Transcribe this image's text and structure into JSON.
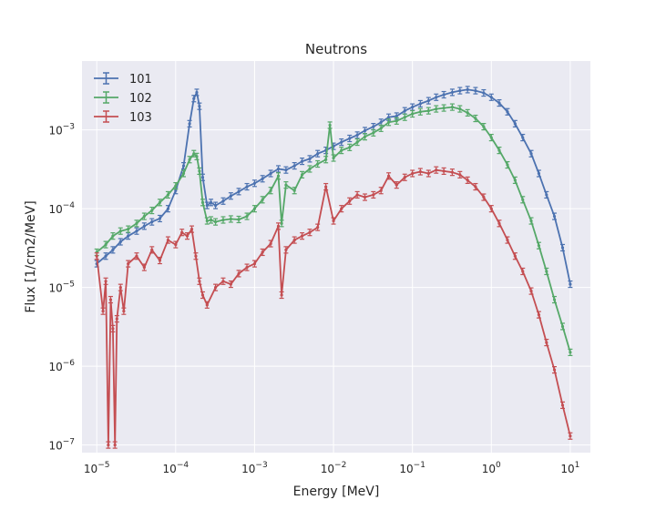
{
  "chart_data": {
    "type": "line",
    "title": "Neutrons",
    "xlabel": "Energy [MeV]",
    "ylabel": "Flux [1/cm2/MeV]",
    "xscale": "log",
    "yscale": "log",
    "xlim": [
      6.5e-06,
      18
    ],
    "ylim": [
      8e-08,
      0.0075
    ],
    "grid": true,
    "legend_position": "top-left",
    "x_ticks": [
      {
        "value": 1e-05,
        "base": "10",
        "exp": "−5"
      },
      {
        "value": 0.0001,
        "base": "10",
        "exp": "−4"
      },
      {
        "value": 0.001,
        "base": "10",
        "exp": "−3"
      },
      {
        "value": 0.01,
        "base": "10",
        "exp": "−2"
      },
      {
        "value": 0.1,
        "base": "10",
        "exp": "−1"
      },
      {
        "value": 1,
        "base": "10",
        "exp": "0"
      },
      {
        "value": 10,
        "base": "10",
        "exp": "1"
      }
    ],
    "y_ticks": [
      {
        "value": 1e-07,
        "base": "10",
        "exp": "−7"
      },
      {
        "value": 1e-06,
        "base": "10",
        "exp": "−6"
      },
      {
        "value": 1e-05,
        "base": "10",
        "exp": "−5"
      },
      {
        "value": 0.0001,
        "base": "10",
        "exp": "−4"
      },
      {
        "value": 0.001,
        "base": "10",
        "exp": "−3"
      }
    ],
    "series": [
      {
        "name": "101",
        "color": "#4c72b0",
        "points": [
          [
            1e-05,
            2e-05
          ],
          [
            1.3e-05,
            2.5e-05
          ],
          [
            1.6e-05,
            3e-05
          ],
          [
            2e-05,
            3.8e-05
          ],
          [
            2.5e-05,
            4.5e-05
          ],
          [
            3.2e-05,
            5.2e-05
          ],
          [
            4e-05,
            6e-05
          ],
          [
            5e-05,
            6.8e-05
          ],
          [
            6.3e-05,
            7.5e-05
          ],
          [
            8e-05,
            0.0001
          ],
          [
            0.0001,
            0.00017
          ],
          [
            0.000126,
            0.00035
          ],
          [
            0.00015,
            0.0012
          ],
          [
            0.00017,
            0.0025
          ],
          [
            0.000185,
            0.003
          ],
          [
            0.0002,
            0.002
          ],
          [
            0.00022,
            0.00025
          ],
          [
            0.00025,
            0.00011
          ],
          [
            0.00028,
            0.00012
          ],
          [
            0.00032,
            0.00011
          ],
          [
            0.0004,
            0.000125
          ],
          [
            0.0005,
            0.000145
          ],
          [
            0.00063,
            0.000165
          ],
          [
            0.0008,
            0.00019
          ],
          [
            0.001,
            0.00021
          ],
          [
            0.00126,
            0.00024
          ],
          [
            0.0016,
            0.00028
          ],
          [
            0.002,
            0.00032
          ],
          [
            0.0025,
            0.00031
          ],
          [
            0.0032,
            0.00035
          ],
          [
            0.004,
            0.0004
          ],
          [
            0.005,
            0.00043
          ],
          [
            0.0063,
            0.0005
          ],
          [
            0.008,
            0.00055
          ],
          [
            0.01,
            0.00062
          ],
          [
            0.0126,
            0.0007
          ],
          [
            0.016,
            0.00078
          ],
          [
            0.02,
            0.00086
          ],
          [
            0.025,
            0.00098
          ],
          [
            0.032,
            0.0011
          ],
          [
            0.04,
            0.00125
          ],
          [
            0.05,
            0.00145
          ],
          [
            0.063,
            0.0015
          ],
          [
            0.08,
            0.00175
          ],
          [
            0.1,
            0.00195
          ],
          [
            0.126,
            0.00215
          ],
          [
            0.16,
            0.00235
          ],
          [
            0.2,
            0.0026
          ],
          [
            0.25,
            0.0028
          ],
          [
            0.32,
            0.003
          ],
          [
            0.4,
            0.00315
          ],
          [
            0.5,
            0.00325
          ],
          [
            0.63,
            0.00315
          ],
          [
            0.8,
            0.00295
          ],
          [
            1,
            0.0026
          ],
          [
            1.26,
            0.0022
          ],
          [
            1.6,
            0.0017
          ],
          [
            2,
            0.0012
          ],
          [
            2.5,
            0.0008
          ],
          [
            3.2,
            0.0005
          ],
          [
            4,
            0.00028
          ],
          [
            5,
            0.00015
          ],
          [
            6.3,
            8e-05
          ],
          [
            8,
            3.2e-05
          ],
          [
            10,
            1.1e-05
          ]
        ]
      },
      {
        "name": "102",
        "color": "#55a868",
        "points": [
          [
            1e-05,
            2.8e-05
          ],
          [
            1.3e-05,
            3.5e-05
          ],
          [
            1.6e-05,
            4.5e-05
          ],
          [
            2e-05,
            5.2e-05
          ],
          [
            2.5e-05,
            5.5e-05
          ],
          [
            3.2e-05,
            6.5e-05
          ],
          [
            4e-05,
            8e-05
          ],
          [
            5e-05,
            9.5e-05
          ],
          [
            6.3e-05,
            0.00012
          ],
          [
            8e-05,
            0.00015
          ],
          [
            0.0001,
            0.000195
          ],
          [
            0.000126,
            0.00028
          ],
          [
            0.00015,
            0.00042
          ],
          [
            0.00017,
            0.0005
          ],
          [
            0.000185,
            0.00046
          ],
          [
            0.0002,
            0.0003
          ],
          [
            0.00022,
            0.00012
          ],
          [
            0.00025,
            7e-05
          ],
          [
            0.00028,
            7.2e-05
          ],
          [
            0.00032,
            6.8e-05
          ],
          [
            0.0004,
            7.2e-05
          ],
          [
            0.0005,
            7.4e-05
          ],
          [
            0.00063,
            7.3e-05
          ],
          [
            0.0008,
            8e-05
          ],
          [
            0.001,
            0.0001
          ],
          [
            0.00126,
            0.00013
          ],
          [
            0.0016,
            0.00017
          ],
          [
            0.002,
            0.00026
          ],
          [
            0.0022,
            6.5e-05
          ],
          [
            0.0025,
            0.0002
          ],
          [
            0.0032,
            0.00017
          ],
          [
            0.004,
            0.00027
          ],
          [
            0.005,
            0.00032
          ],
          [
            0.0063,
            0.00037
          ],
          [
            0.008,
            0.00042
          ],
          [
            0.009,
            0.00115
          ],
          [
            0.01,
            0.00044
          ],
          [
            0.0126,
            0.00055
          ],
          [
            0.016,
            0.0006
          ],
          [
            0.02,
            0.0007
          ],
          [
            0.025,
            0.00082
          ],
          [
            0.032,
            0.00092
          ],
          [
            0.04,
            0.00105
          ],
          [
            0.05,
            0.00125
          ],
          [
            0.063,
            0.0013
          ],
          [
            0.08,
            0.00145
          ],
          [
            0.1,
            0.0016
          ],
          [
            0.126,
            0.0017
          ],
          [
            0.16,
            0.00175
          ],
          [
            0.2,
            0.00185
          ],
          [
            0.25,
            0.0019
          ],
          [
            0.32,
            0.00195
          ],
          [
            0.4,
            0.00185
          ],
          [
            0.5,
            0.00165
          ],
          [
            0.63,
            0.0014
          ],
          [
            0.8,
            0.0011
          ],
          [
            1,
            0.0008
          ],
          [
            1.26,
            0.00055
          ],
          [
            1.6,
            0.00036
          ],
          [
            2,
            0.00023
          ],
          [
            2.5,
            0.00013
          ],
          [
            3.2,
            7e-05
          ],
          [
            4,
            3.4e-05
          ],
          [
            5,
            1.6e-05
          ],
          [
            6.3,
            7e-06
          ],
          [
            8,
            3.2e-06
          ],
          [
            10,
            1.5e-06
          ]
        ]
      },
      {
        "name": "103",
        "color": "#c44e52",
        "points": [
          [
            1e-05,
            2.5e-05
          ],
          [
            1.2e-05,
            5e-06
          ],
          [
            1.3e-05,
            1.2e-05
          ],
          [
            1.4e-05,
            1e-07
          ],
          [
            1.5e-05,
            7e-06
          ],
          [
            1.6e-05,
            3e-06
          ],
          [
            1.7e-05,
            1e-07
          ],
          [
            1.8e-05,
            4e-06
          ],
          [
            2e-05,
            1e-05
          ],
          [
            2.2e-05,
            5e-06
          ],
          [
            2.5e-05,
            2e-05
          ],
          [
            3.2e-05,
            2.5e-05
          ],
          [
            4e-05,
            1.8e-05
          ],
          [
            5e-05,
            3e-05
          ],
          [
            6.3e-05,
            2.2e-05
          ],
          [
            8e-05,
            4e-05
          ],
          [
            0.0001,
            3.5e-05
          ],
          [
            0.00012,
            5e-05
          ],
          [
            0.00014,
            4.5e-05
          ],
          [
            0.00016,
            5.5e-05
          ],
          [
            0.00018,
            2.5e-05
          ],
          [
            0.0002,
            1.2e-05
          ],
          [
            0.00022,
            8e-06
          ],
          [
            0.00025,
            6e-06
          ],
          [
            0.00032,
            1e-05
          ],
          [
            0.0004,
            1.2e-05
          ],
          [
            0.0005,
            1.1e-05
          ],
          [
            0.00063,
            1.5e-05
          ],
          [
            0.0008,
            1.8e-05
          ],
          [
            0.001,
            2e-05
          ],
          [
            0.00126,
            2.8e-05
          ],
          [
            0.0016,
            3.6e-05
          ],
          [
            0.002,
            6e-05
          ],
          [
            0.0022,
            8e-06
          ],
          [
            0.0025,
            3e-05
          ],
          [
            0.0032,
            4e-05
          ],
          [
            0.004,
            4.5e-05
          ],
          [
            0.005,
            5e-05
          ],
          [
            0.0063,
            5.8e-05
          ],
          [
            0.008,
            0.00019
          ],
          [
            0.01,
            7e-05
          ],
          [
            0.0126,
            0.0001
          ],
          [
            0.016,
            0.000125
          ],
          [
            0.02,
            0.00015
          ],
          [
            0.025,
            0.00014
          ],
          [
            0.032,
            0.00015
          ],
          [
            0.04,
            0.00017
          ],
          [
            0.05,
            0.00026
          ],
          [
            0.063,
            0.0002
          ],
          [
            0.08,
            0.00025
          ],
          [
            0.1,
            0.00028
          ],
          [
            0.126,
            0.000295
          ],
          [
            0.16,
            0.00028
          ],
          [
            0.2,
            0.00031
          ],
          [
            0.25,
            0.0003
          ],
          [
            0.32,
            0.00029
          ],
          [
            0.4,
            0.00027
          ],
          [
            0.5,
            0.00023
          ],
          [
            0.63,
            0.00019
          ],
          [
            0.8,
            0.00014
          ],
          [
            1,
            0.0001
          ],
          [
            1.26,
            6.5e-05
          ],
          [
            1.6,
            4e-05
          ],
          [
            2,
            2.5e-05
          ],
          [
            2.5,
            1.6e-05
          ],
          [
            3.2,
            9e-06
          ],
          [
            4,
            4.5e-06
          ],
          [
            5,
            2e-06
          ],
          [
            6.3,
            9e-07
          ],
          [
            8,
            3.2e-07
          ],
          [
            10,
            1.3e-07
          ]
        ]
      }
    ]
  }
}
